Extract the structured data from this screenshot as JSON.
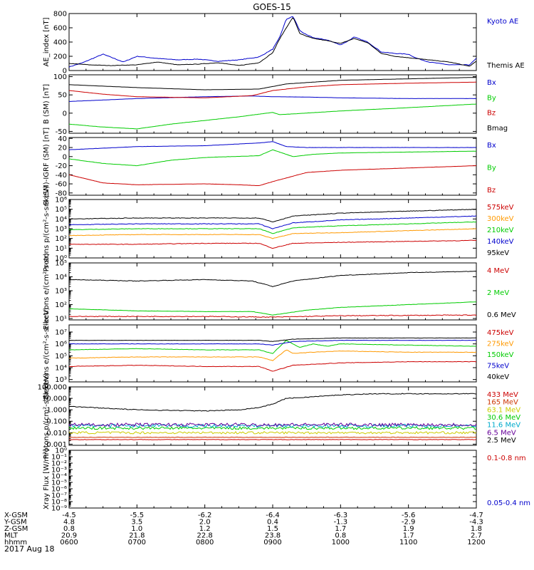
{
  "title": "GOES-15",
  "date": "2017 Aug 18",
  "x_ticks": [
    "0600",
    "0700",
    "0800",
    "0900",
    "1000",
    "1100",
    "1200"
  ],
  "orbit_table": [
    {
      "label": "X-GSM",
      "values": [
        "-4.5",
        "-5.5",
        "-6.2",
        "-6.4",
        "-6.3",
        "-5.6",
        "-4.7"
      ]
    },
    {
      "label": "Y-GSM",
      "values": [
        "4.8",
        "3.5",
        "2.0",
        "0.4",
        "-1.3",
        "-2.9",
        "-4.3"
      ]
    },
    {
      "label": "Z-GSM",
      "values": [
        "0.8",
        "1.0",
        "1.2",
        "1.5",
        "1.7",
        "1.9",
        "1.8"
      ]
    },
    {
      "label": "MLT",
      "values": [
        "20.9",
        "21.8",
        "22.8",
        "23.8",
        "0.8",
        "1.7",
        "2.7"
      ]
    },
    {
      "label": "hhmm",
      "values": [
        "0600",
        "0700",
        "0800",
        "0900",
        "1000",
        "1100",
        "1200"
      ]
    }
  ],
  "chart_data": [
    {
      "type": "line",
      "id": "ae",
      "ylabel": "AE_index [nT]",
      "ylim": [
        0,
        800
      ],
      "log": false,
      "ticks": [
        {
          "v": 0,
          "t": "0"
        },
        {
          "v": 200,
          "t": "200"
        },
        {
          "v": 400,
          "t": "400"
        },
        {
          "v": 600,
          "t": "600"
        },
        {
          "v": 800,
          "t": "800"
        }
      ],
      "series": [
        {
          "name": "Kyoto AE",
          "color": "#0000cc",
          "noise": 0.06,
          "x": [
            6,
            6.2,
            6.5,
            6.8,
            7,
            7.3,
            7.6,
            7.9,
            8.2,
            8.5,
            8.8,
            9,
            9.1,
            9.2,
            9.3,
            9.4,
            9.5,
            9.6,
            9.8,
            10,
            10.1,
            10.2,
            10.4,
            10.6,
            10.8,
            11,
            11.1,
            11.3,
            11.6,
            11.9,
            12
          ],
          "y": [
            50,
            110,
            230,
            120,
            200,
            170,
            150,
            160,
            130,
            150,
            190,
            300,
            460,
            720,
            760,
            560,
            500,
            460,
            430,
            360,
            410,
            470,
            400,
            260,
            240,
            230,
            180,
            120,
            80,
            80,
            170
          ]
        },
        {
          "name": "Themis AE",
          "color": "#000000",
          "noise": 0.04,
          "x": [
            6,
            6.3,
            6.6,
            7,
            7.3,
            7.6,
            7.9,
            8.2,
            8.5,
            8.8,
            9,
            9.1,
            9.2,
            9.3,
            9.4,
            9.5,
            9.6,
            9.8,
            10,
            10.2,
            10.4,
            10.6,
            10.8,
            11,
            11.3,
            11.6,
            11.9,
            12
          ],
          "y": [
            100,
            80,
            70,
            80,
            120,
            80,
            90,
            110,
            70,
            110,
            250,
            440,
            600,
            750,
            520,
            480,
            450,
            420,
            380,
            450,
            390,
            240,
            200,
            180,
            150,
            120,
            60,
            130
          ]
        }
      ]
    },
    {
      "type": "line",
      "id": "bsm",
      "ylabel": "B (SM) [nT]",
      "ylim": [
        -55,
        105
      ],
      "log": false,
      "ticks": [
        {
          "v": -50,
          "t": "-50"
        },
        {
          "v": 0,
          "t": "0"
        },
        {
          "v": 50,
          "t": "50"
        },
        {
          "v": 100,
          "t": "100"
        }
      ],
      "series": [
        {
          "name": "Bx",
          "color": "#0000cc",
          "noise": 0.01,
          "x": [
            6,
            7,
            8,
            8.7,
            9,
            9.5,
            10,
            11,
            12
          ],
          "y": [
            32,
            40,
            45,
            47,
            45,
            44,
            42,
            40,
            40
          ]
        },
        {
          "name": "By",
          "color": "#00cc00",
          "noise": 0.015,
          "x": [
            6,
            6.5,
            7,
            7.5,
            8,
            8.5,
            9,
            9.1,
            9.3,
            10,
            11,
            12
          ],
          "y": [
            -30,
            -38,
            -43,
            -30,
            -20,
            -10,
            2,
            -4,
            -2,
            6,
            15,
            25
          ]
        },
        {
          "name": "Bz",
          "color": "#cc0000",
          "noise": 0.01,
          "x": [
            6,
            6.5,
            7,
            8,
            8.7,
            9,
            9.5,
            10,
            11,
            12
          ],
          "y": [
            62,
            52,
            45,
            42,
            48,
            62,
            72,
            78,
            82,
            85
          ]
        },
        {
          "name": "Bmag",
          "color": "#000000",
          "noise": 0.008,
          "x": [
            6,
            7,
            8,
            8.8,
            9.2,
            10,
            11,
            12
          ],
          "y": [
            78,
            70,
            64,
            66,
            80,
            90,
            94,
            98
          ]
        }
      ]
    },
    {
      "type": "line",
      "id": "bigrf",
      "ylabel": "B (SM)-IGRF (SM) [nT]",
      "ylim": [
        -85,
        42
      ],
      "log": false,
      "ticks": [
        {
          "v": -80,
          "t": "-80"
        },
        {
          "v": -60,
          "t": "-60"
        },
        {
          "v": -40,
          "t": "-40"
        },
        {
          "v": -20,
          "t": "-20"
        },
        {
          "v": 0,
          "t": "0"
        },
        {
          "v": 20,
          "t": "20"
        },
        {
          "v": 40,
          "t": "40"
        }
      ],
      "series": [
        {
          "name": "Bx",
          "color": "#0000cc",
          "noise": 0.02,
          "x": [
            6,
            7,
            8,
            8.8,
            9,
            9.2,
            9.5,
            10,
            11,
            12
          ],
          "y": [
            15,
            22,
            24,
            30,
            33,
            22,
            20,
            20,
            20,
            20
          ]
        },
        {
          "name": "By",
          "color": "#00cc00",
          "noise": 0.02,
          "x": [
            6,
            6.5,
            7,
            7.5,
            8,
            8.8,
            9,
            9.3,
            9.6,
            10,
            11,
            12
          ],
          "y": [
            -5,
            -15,
            -20,
            -8,
            -2,
            2,
            15,
            0,
            5,
            8,
            10,
            12
          ]
        },
        {
          "name": "Bz",
          "color": "#cc0000",
          "noise": 0.02,
          "x": [
            6,
            6.5,
            7,
            8,
            8.5,
            8.8,
            9,
            9.5,
            10,
            11,
            12
          ],
          "y": [
            -40,
            -58,
            -62,
            -60,
            -62,
            -64,
            -55,
            -35,
            -30,
            -25,
            -20
          ]
        }
      ]
    },
    {
      "type": "line",
      "id": "protons",
      "ylabel": "Protons p/(cm²-s-sr-keV)",
      "ylim": [
        0,
        6
      ],
      "log": true,
      "ticks": [
        {
          "v": 0,
          "t": "10⁰"
        },
        {
          "v": 1,
          "t": "10¹"
        },
        {
          "v": 2,
          "t": "10²"
        },
        {
          "v": 3,
          "t": "10³"
        },
        {
          "v": 4,
          "t": "10⁴"
        },
        {
          "v": 5,
          "t": "10⁵"
        },
        {
          "v": 6,
          "t": "10⁶"
        }
      ],
      "series": [
        {
          "name": "575keV",
          "color": "#cc0000",
          "noise": 0.06,
          "x": [
            6,
            7,
            8,
            8.8,
            9,
            9.3,
            10,
            11,
            12
          ],
          "y": [
            1.4,
            1.4,
            1.5,
            1.5,
            1.0,
            1.5,
            1.6,
            1.7,
            1.8
          ]
        },
        {
          "name": "300keV",
          "color": "#ff9900",
          "noise": 0.05,
          "x": [
            6,
            7,
            8,
            8.8,
            9,
            9.3,
            10,
            11,
            12
          ],
          "y": [
            2.3,
            2.4,
            2.4,
            2.4,
            2.0,
            2.5,
            2.6,
            2.8,
            3.0
          ]
        },
        {
          "name": "210keV",
          "color": "#00cc00",
          "noise": 0.05,
          "x": [
            6,
            7,
            8,
            8.8,
            9,
            9.3,
            10,
            11,
            12
          ],
          "y": [
            2.9,
            3.0,
            3.0,
            3.0,
            2.5,
            3.1,
            3.3,
            3.5,
            3.7
          ]
        },
        {
          "name": "140keV",
          "color": "#0000cc",
          "noise": 0.06,
          "x": [
            6,
            7,
            8,
            8.8,
            9,
            9.3,
            10,
            11,
            12
          ],
          "y": [
            3.4,
            3.5,
            3.5,
            3.5,
            3.0,
            3.6,
            3.9,
            4.1,
            4.3
          ]
        },
        {
          "name": "95keV",
          "color": "#000000",
          "noise": 0.06,
          "x": [
            6,
            7,
            8,
            8.8,
            9,
            9.3,
            10,
            11,
            12
          ],
          "y": [
            4.0,
            4.1,
            4.1,
            4.1,
            3.7,
            4.3,
            4.6,
            4.8,
            5.0
          ]
        }
      ]
    },
    {
      "type": "line",
      "id": "electrons_hi",
      "ylabel": "Electrons e/(cm²-s-sr)",
      "ylim": [
        0.9,
        5
      ],
      "log": true,
      "ticks": [
        {
          "v": 1,
          "t": "10¹"
        },
        {
          "v": 2,
          "t": "10²"
        },
        {
          "v": 3,
          "t": "10³"
        },
        {
          "v": 4,
          "t": "10⁴"
        },
        {
          "v": 5,
          "t": "10⁵"
        }
      ],
      "series": [
        {
          "name": "4 MeV",
          "color": "#cc0000",
          "noise": 0.08,
          "x": [
            6,
            8,
            9,
            10,
            12
          ],
          "y": [
            1.15,
            1.15,
            1.1,
            1.2,
            1.25
          ]
        },
        {
          "name": "2 MeV",
          "color": "#00cc00",
          "noise": 0.03,
          "x": [
            6,
            7,
            8,
            8.7,
            9,
            9.5,
            10,
            11,
            12
          ],
          "y": [
            1.7,
            1.55,
            1.5,
            1.5,
            1.25,
            1.6,
            1.8,
            2.0,
            2.2
          ]
        },
        {
          "name": "0.6 MeV",
          "color": "#000000",
          "noise": 0.06,
          "x": [
            6,
            7,
            8,
            8.7,
            9,
            9.3,
            10,
            11,
            12
          ],
          "y": [
            3.8,
            3.7,
            3.8,
            3.7,
            3.3,
            3.7,
            4.1,
            4.3,
            4.4
          ]
        }
      ]
    },
    {
      "type": "line",
      "id": "electrons_lo",
      "ylabel": "Electrons e/(cm²-s-sr-keV)",
      "ylim": [
        2.8,
        7.6
      ],
      "log": true,
      "ticks": [
        {
          "v": 3,
          "t": "10³"
        },
        {
          "v": 4,
          "t": "10⁴"
        },
        {
          "v": 5,
          "t": "10⁵"
        },
        {
          "v": 6,
          "t": "10⁶"
        },
        {
          "v": 7,
          "t": "10⁷"
        }
      ],
      "series": [
        {
          "name": "475keV",
          "color": "#cc0000",
          "noise": 0.05,
          "x": [
            6,
            7,
            8,
            8.8,
            9,
            9.3,
            10,
            11,
            12
          ],
          "y": [
            4.1,
            4.2,
            4.1,
            4.1,
            3.7,
            4.2,
            4.4,
            4.5,
            4.5
          ]
        },
        {
          "name": "275keV",
          "color": "#ff9900",
          "noise": 0.05,
          "x": [
            6,
            7,
            8,
            8.8,
            9,
            9.2,
            9.3,
            9.6,
            10,
            11,
            12
          ],
          "y": [
            4.8,
            4.9,
            4.9,
            4.9,
            4.6,
            5.5,
            5.2,
            5.3,
            5.4,
            5.3,
            5.3
          ]
        },
        {
          "name": "150keV",
          "color": "#00cc00",
          "noise": 0.04,
          "x": [
            6,
            7,
            8,
            8.8,
            9,
            9.2,
            9.4,
            9.6,
            9.8,
            10,
            11,
            12
          ],
          "y": [
            5.5,
            5.6,
            5.5,
            5.5,
            5.2,
            6.3,
            5.7,
            6.0,
            5.8,
            6.0,
            5.9,
            5.8
          ]
        },
        {
          "name": "75keV",
          "color": "#0000cc",
          "noise": 0.04,
          "x": [
            6,
            7,
            8,
            8.8,
            9,
            9.3,
            10,
            11,
            12
          ],
          "y": [
            6.0,
            6.0,
            6.0,
            6.0,
            5.9,
            6.2,
            6.3,
            6.3,
            6.3
          ]
        },
        {
          "name": "40keV",
          "color": "#000000",
          "noise": 0.03,
          "x": [
            6,
            7,
            8,
            8.8,
            9,
            9.3,
            10,
            11,
            12
          ],
          "y": [
            6.3,
            6.3,
            6.3,
            6.3,
            6.2,
            6.4,
            6.5,
            6.5,
            6.5
          ]
        }
      ]
    },
    {
      "type": "line",
      "id": "protons_hi",
      "ylabel": "Protons p/(cm²-s-sr-keV)",
      "ylim": [
        -3.1,
        2
      ],
      "log": true,
      "ticks": [
        {
          "v": -3,
          "t": "0.001"
        },
        {
          "v": -2,
          "t": "0.010"
        },
        {
          "v": -1,
          "t": "0.100"
        },
        {
          "v": 0,
          "t": "1.000"
        },
        {
          "v": 1,
          "t": "10.000"
        },
        {
          "v": 2,
          "t": "100.000"
        }
      ],
      "series": [
        {
          "name": "433 MeV",
          "color": "#cc0000",
          "noise": 0.04,
          "x": [
            6,
            9,
            12
          ],
          "y": [
            -2.6,
            -2.6,
            -2.6
          ]
        },
        {
          "name": "165 MeV",
          "color": "#cc3300",
          "noise": 0.05,
          "x": [
            6,
            9,
            12
          ],
          "y": [
            -2.4,
            -2.4,
            -2.4
          ]
        },
        {
          "name": "63.1 MeV",
          "color": "#cccc00",
          "noise": 0.25,
          "x": [
            6,
            9,
            12
          ],
          "y": [
            -2.0,
            -2.0,
            -2.0
          ]
        },
        {
          "name": "30.6 MeV",
          "color": "#00cc00",
          "noise": 0.28,
          "x": [
            6,
            9,
            12
          ],
          "y": [
            -1.6,
            -1.6,
            -1.6
          ]
        },
        {
          "name": "11.6 MeV",
          "color": "#00aacc",
          "noise": 0.35,
          "x": [
            6,
            9,
            12
          ],
          "y": [
            -1.4,
            -1.4,
            -1.4
          ]
        },
        {
          "name": "6.5 MeV",
          "color": "#660099",
          "noise": 0.35,
          "x": [
            6,
            9,
            12
          ],
          "y": [
            -1.3,
            -1.3,
            -1.3
          ]
        },
        {
          "name": "2.5 MeV",
          "color": "#000000",
          "noise": 0.08,
          "x": [
            6,
            7,
            8,
            8.5,
            8.8,
            9,
            9.2,
            9.5,
            10,
            10.5,
            11,
            11.5,
            12
          ],
          "y": [
            0.3,
            0,
            -0.1,
            0,
            0.2,
            0.5,
            1.0,
            1.1,
            1.3,
            1.4,
            1.4,
            1.4,
            1.4
          ]
        }
      ]
    },
    {
      "type": "line",
      "id": "xray",
      "ylabel": "Xray Flux [W/m²]",
      "ylim": [
        -9,
        0
      ],
      "log": true,
      "ticks": [
        {
          "v": -9,
          "t": "10⁻⁹"
        },
        {
          "v": -8,
          "t": "10⁻⁸"
        },
        {
          "v": -7,
          "t": "10⁻⁷"
        },
        {
          "v": -6,
          "t": "10⁻⁶"
        },
        {
          "v": -5,
          "t": "10⁻⁵"
        },
        {
          "v": -4,
          "t": "10⁻⁴"
        },
        {
          "v": -3,
          "t": "10⁻³"
        },
        {
          "v": -2,
          "t": "10⁻²"
        },
        {
          "v": -1,
          "t": "10⁻¹"
        },
        {
          "v": 0,
          "t": "10⁰"
        }
      ],
      "series": [
        {
          "name": "0.1-0.8 nm",
          "color": "#cc0000",
          "noise": 0,
          "x": [],
          "y": []
        },
        {
          "name": "0.05-0.4 nm",
          "color": "#0000cc",
          "noise": 0,
          "x": [],
          "y": []
        }
      ]
    }
  ]
}
